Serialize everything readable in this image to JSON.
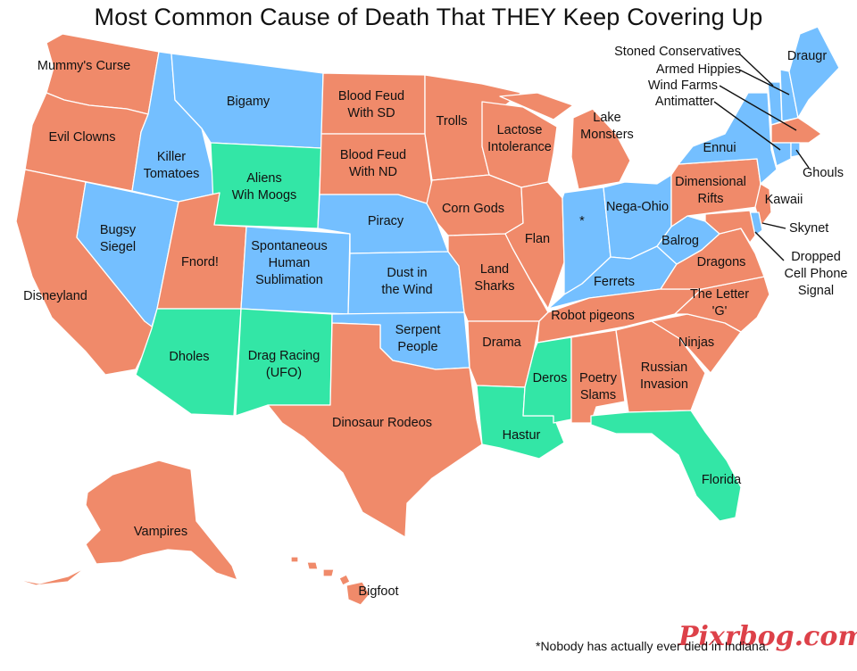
{
  "title": "Most Common Cause of Death That THEY Keep Covering Up",
  "colors": {
    "red": "#f08a6a",
    "blue": "#74bfff",
    "green": "#33e6a6"
  },
  "regions": {
    "wa": "Mummy's Curse",
    "or": "Evil Clowns",
    "ca": "Disneyland",
    "nv": "Bugsy Siegel",
    "id": "Killer Tomatoes",
    "mt": "Bigamy",
    "wy": "Aliens Wih Moogs",
    "ut": "Fnord!",
    "co": "Spontaneous Human Sublimation",
    "az": "Dholes",
    "nm": "Drag Racing (UFO)",
    "nd": "Blood Feud With SD",
    "sd": "Blood Feud With ND",
    "ne": "Piracy",
    "ks": "Dust in the Wind",
    "ok": "Serpent People",
    "tx": "Dinosaur Rodeos",
    "mn": "Trolls",
    "ia": "Corn Gods",
    "mo": "Land Sharks",
    "ar": "Drama",
    "la": "Hastur",
    "wi": "Lactose Intolerance",
    "il": "Flan",
    "mi": "Lake Monsters",
    "in": "*",
    "oh": "Nega-Ohio",
    "ky": "Ferrets",
    "tn": "Robot pigeons",
    "ms": "Deros",
    "al": "Poetry Slams",
    "ga": "Russian Invasion",
    "fl": "Florida",
    "sc": "Ninjas",
    "nc": "The Letter 'G'",
    "va": "Dragons",
    "wv": "Balrog",
    "pa": "Dimensional Rifts",
    "ny": "Ennui",
    "nj": "Kawaii",
    "md": "Dropped Cell Phone Signal",
    "de": "Skynet",
    "me": "Draugr",
    "vt": "Stoned Conservatives",
    "nh": "Armed Hippies",
    "ma": "Wind Farms",
    "ct": "Antimatter",
    "ri": "Ghouls",
    "ak": "Vampires",
    "hi": "Bigfoot"
  },
  "footnote": "*Nobody has actually ever died in Indiana.",
  "watermark": "Pixrbog.com"
}
